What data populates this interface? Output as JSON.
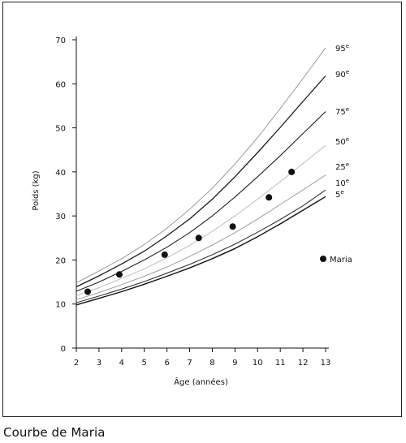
{
  "caption": "Courbe de Maria",
  "chart_data": {
    "type": "line",
    "title": "",
    "xlabel": "Âge (années)",
    "ylabel": "Poids (kg)",
    "xlim": [
      2,
      13
    ],
    "ylim": [
      0,
      70
    ],
    "xticks": [
      2,
      3,
      4,
      5,
      6,
      7,
      8,
      9,
      10,
      11,
      12,
      13
    ],
    "yticks": [
      0,
      10,
      20,
      30,
      40,
      50,
      60,
      70
    ],
    "grid": false,
    "legend": {
      "position": "right",
      "marker_label": "Maria"
    },
    "x": [
      2,
      3,
      4,
      5,
      6,
      7,
      8,
      9,
      10,
      11,
      12,
      13
    ],
    "series": [
      {
        "name": "95",
        "suffix": "e",
        "color": "#9a9a9a",
        "width": 1.0,
        "values": [
          14.8,
          17.5,
          20.3,
          23.5,
          27.2,
          31.5,
          36.3,
          41.8,
          47.8,
          54.4,
          61.2,
          68.2
        ]
      },
      {
        "name": "90",
        "suffix": "e",
        "color": "#1a1a1a",
        "width": 1.3,
        "values": [
          13.9,
          16.4,
          19.1,
          22.0,
          25.5,
          29.3,
          33.8,
          38.9,
          44.4,
          50.1,
          56.0,
          61.8
        ]
      },
      {
        "name": "75",
        "suffix": "e",
        "color": "#222222",
        "width": 1.1,
        "values": [
          12.9,
          15.0,
          17.4,
          20.0,
          22.9,
          26.2,
          30.0,
          34.3,
          38.9,
          43.7,
          48.7,
          53.7
        ]
      },
      {
        "name": "50",
        "suffix": "e",
        "color": "#bdbdbd",
        "width": 1.0,
        "values": [
          11.9,
          13.7,
          15.8,
          18.0,
          20.5,
          23.3,
          26.5,
          30.0,
          33.8,
          37.8,
          41.9,
          46.0
        ]
      },
      {
        "name": "25",
        "suffix": "e",
        "color": "#9e9e9e",
        "width": 1.0,
        "values": [
          11.0,
          12.6,
          14.4,
          16.3,
          18.4,
          20.8,
          23.4,
          26.2,
          29.3,
          32.6,
          35.9,
          39.3
        ]
      },
      {
        "name": "10",
        "suffix": "e",
        "color": "#333333",
        "width": 1.1,
        "values": [
          10.3,
          11.8,
          13.4,
          15.1,
          17.0,
          19.0,
          21.2,
          23.6,
          26.3,
          29.2,
          32.3,
          35.9
        ]
      },
      {
        "name": "5",
        "suffix": "e",
        "color": "#111111",
        "width": 1.4,
        "values": [
          9.8,
          11.3,
          12.8,
          14.5,
          16.3,
          18.2,
          20.3,
          22.6,
          25.3,
          28.2,
          31.3,
          34.4
        ]
      }
    ],
    "points": {
      "name": "Maria",
      "x": [
        2.5,
        3.9,
        5.9,
        7.4,
        8.9,
        10.5,
        11.5
      ],
      "y": [
        12.8,
        16.7,
        21.2,
        25.0,
        27.6,
        34.2,
        40.0
      ]
    }
  }
}
